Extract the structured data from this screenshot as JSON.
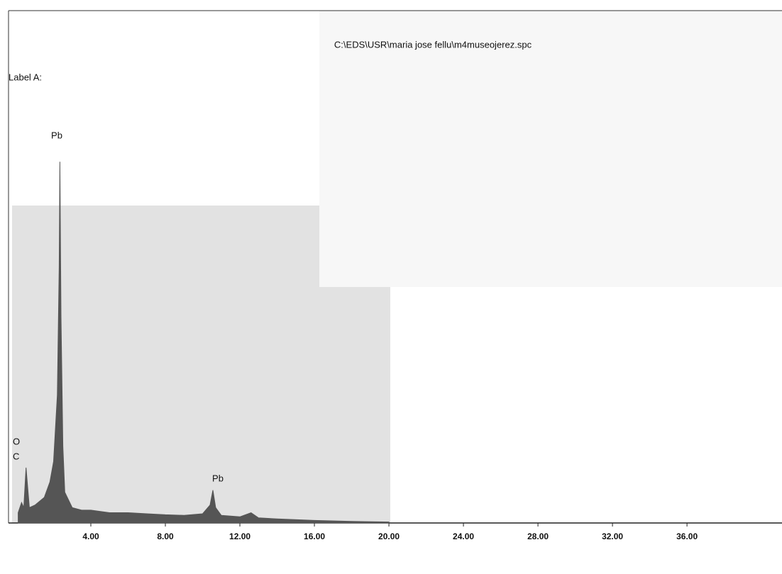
{
  "chart_data": {
    "type": "area",
    "title": "C:\\EDS\\USR\\maria jose fellu\\m4museojerez.spc",
    "subtitle": "Label A:",
    "annotations": [
      "Pb",
      "Pb",
      "O",
      "C"
    ],
    "x": [
      0.1,
      0.28,
      0.4,
      0.52,
      0.7,
      1.0,
      1.5,
      1.8,
      2.0,
      2.2,
      2.3,
      2.34,
      2.4,
      2.5,
      2.6,
      3.0,
      3.5,
      4.0,
      5.0,
      6.0,
      7.0,
      8.0,
      9.0,
      10.0,
      10.4,
      10.55,
      10.7,
      11.0,
      12.0,
      12.6,
      13.0,
      14.0,
      16.0,
      18.0,
      20.0
    ],
    "values": [
      2,
      4,
      3,
      10.8,
      3,
      3.5,
      5,
      8,
      12,
      25,
      50,
      70.5,
      40,
      15,
      6,
      3,
      2.5,
      2.5,
      2,
      2,
      1.8,
      1.6,
      1.5,
      1.8,
      3.5,
      6.4,
      3,
      1.5,
      1.2,
      2,
      1,
      0.8,
      0.5,
      0.3,
      0.2
    ],
    "color": "#555555",
    "xlim": [
      0,
      41.1
    ],
    "ylim": [
      0,
      100
    ],
    "xticks": [
      {
        "value": 4,
        "label": "4.00"
      },
      {
        "value": 8,
        "label": "8.00"
      },
      {
        "value": 12,
        "label": "12.00"
      },
      {
        "value": 16,
        "label": "16.00"
      },
      {
        "value": 20,
        "label": "20.00"
      },
      {
        "value": 24,
        "label": "24.00"
      },
      {
        "value": 28,
        "label": "28.00"
      },
      {
        "value": 32,
        "label": "32.00"
      },
      {
        "value": 36,
        "label": "36.00"
      }
    ]
  }
}
